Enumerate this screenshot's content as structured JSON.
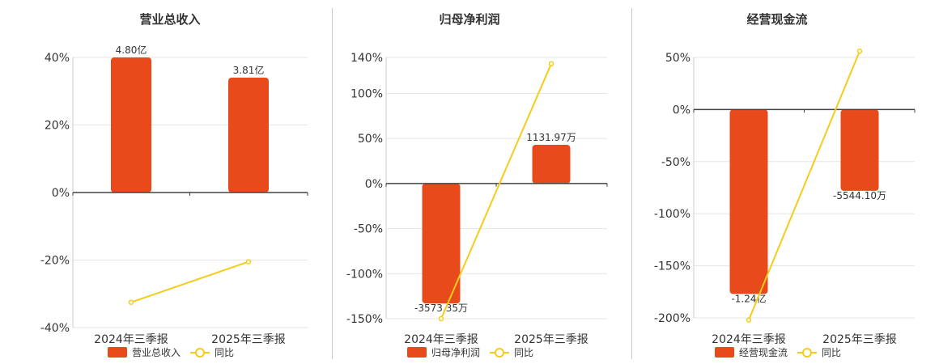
{
  "colors": {
    "bar": "#e84a1c",
    "line": "#f5cc1a",
    "grid": "#e6e6e6",
    "axis": "#444444",
    "text": "#333333"
  },
  "chart_data": [
    {
      "type": "bar",
      "title": "营业总收入",
      "categories": [
        "2024年三季报",
        "2025年三季报"
      ],
      "series": [
        {
          "name": "营业总收入",
          "type": "bar",
          "values": [
            40,
            34
          ],
          "value_labels": [
            "4.80亿",
            "3.81亿"
          ]
        },
        {
          "name": "同比",
          "type": "line",
          "values": [
            -32.5,
            -20.5
          ]
        }
      ],
      "ylim": [
        -40,
        40
      ],
      "ticks": [
        40,
        20,
        0,
        -20,
        -40
      ],
      "tick_labels": [
        "40%",
        "20%",
        "0%",
        "-20%",
        "-40%"
      ],
      "grid": true,
      "legend_position": "bottom"
    },
    {
      "type": "bar",
      "title": "归母净利润",
      "categories": [
        "2024年三季报",
        "2025年三季报"
      ],
      "series": [
        {
          "name": "归母净利润",
          "type": "bar",
          "values": [
            -133,
            43
          ],
          "value_labels": [
            "-3573.35万",
            "1131.97万"
          ]
        },
        {
          "name": "同比",
          "type": "line",
          "values": [
            -150,
            133
          ]
        }
      ],
      "ylim": [
        -150,
        140
      ],
      "ticks": [
        140,
        100,
        50,
        0,
        -50,
        -100,
        -150
      ],
      "tick_labels": [
        "140%",
        "100%",
        "50%",
        "0%",
        "-50%",
        "-100%",
        "-150%"
      ],
      "grid": true,
      "legend_position": "bottom"
    },
    {
      "type": "bar",
      "title": "经营现金流",
      "categories": [
        "2024年三季报",
        "2025年三季报"
      ],
      "series": [
        {
          "name": "经营现金流",
          "type": "bar",
          "values": [
            -177,
            -78
          ],
          "value_labels": [
            "-1.24亿",
            "-5544.10万"
          ]
        },
        {
          "name": "同比",
          "type": "line",
          "values": [
            -202,
            56
          ]
        }
      ],
      "ylim": [
        -200,
        50
      ],
      "ticks": [
        50,
        0,
        -50,
        -100,
        -150,
        -200
      ],
      "tick_labels": [
        "50%",
        "0%",
        "-50%",
        "-100%",
        "-150%",
        "-200%"
      ],
      "grid": true,
      "legend_position": "bottom"
    }
  ]
}
